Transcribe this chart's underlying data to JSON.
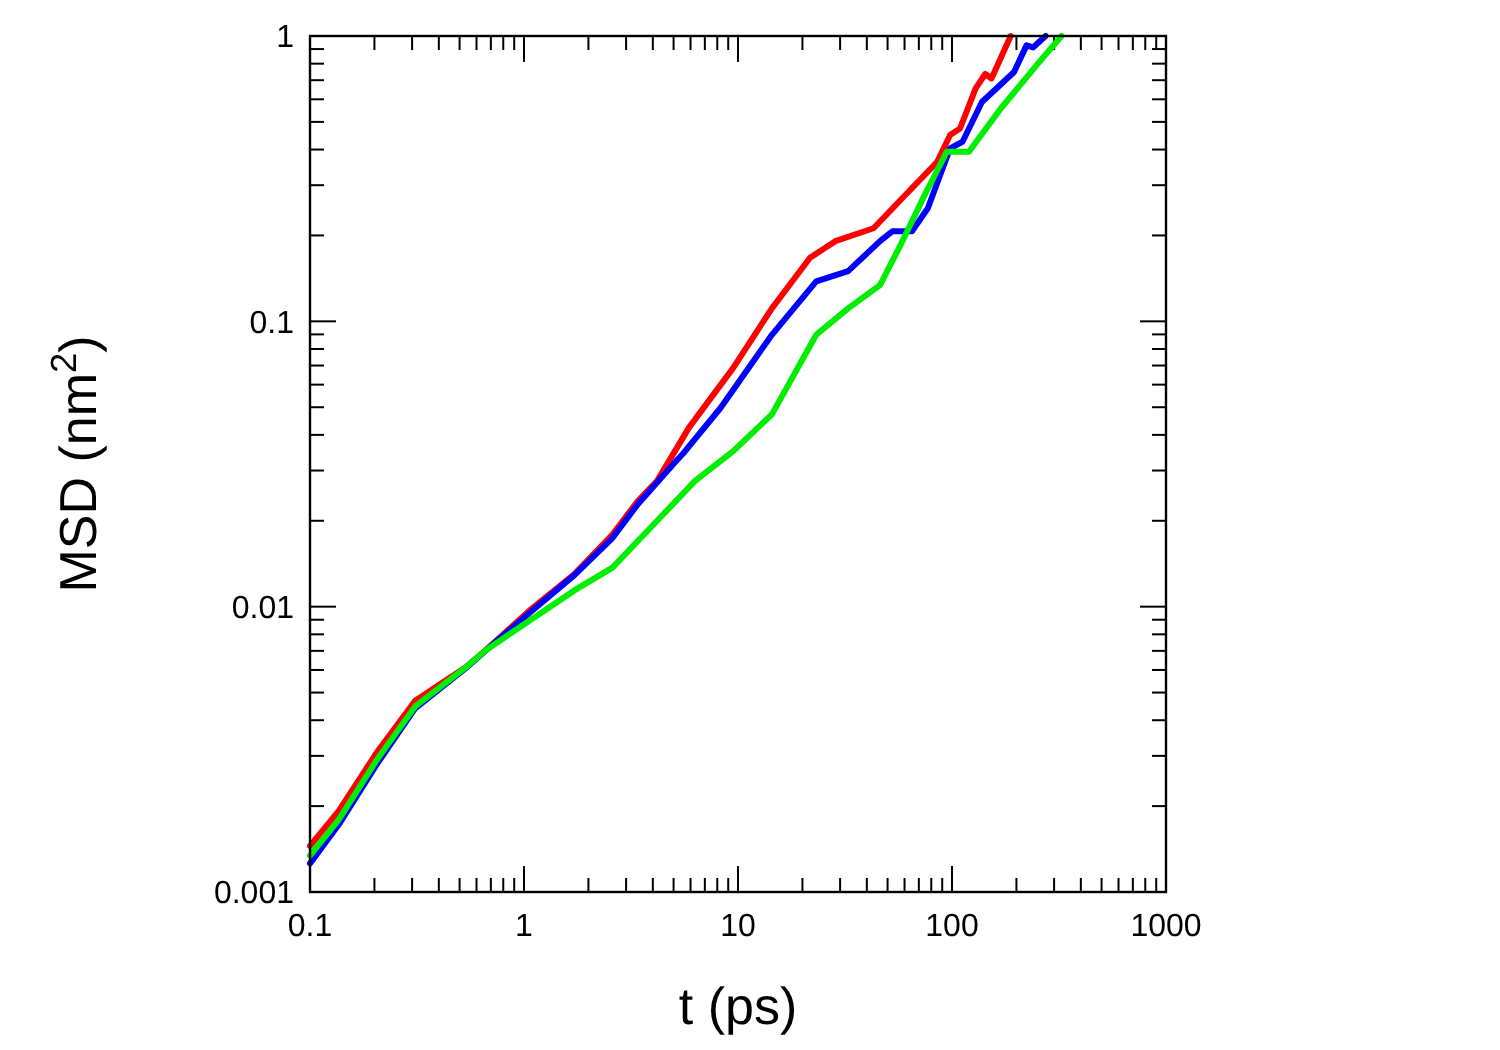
{
  "chart_data": {
    "type": "line",
    "xlabel": "t (ps)",
    "ylabel": "MSD (nm$^{2}$)",
    "log": "xy",
    "xlim": [
      0.1,
      1000
    ],
    "ylim": [
      0.001,
      1
    ],
    "xticks": [
      0.1,
      {
        "value": 0.2,
        "label": null
      },
      {
        "value": 0.3,
        "label": null
      },
      {
        "value": 0.4,
        "label": null
      },
      {
        "value": 0.5,
        "label": null
      },
      {
        "value": 0.6,
        "label": null
      },
      {
        "value": 0.7,
        "label": null
      },
      {
        "value": 0.8,
        "label": null
      },
      {
        "value": 0.9,
        "label": null
      },
      1,
      {
        "value": 2,
        "label": null
      },
      {
        "value": 3,
        "label": null
      },
      {
        "value": 4,
        "label": null
      },
      {
        "value": 5,
        "label": null
      },
      {
        "value": 6,
        "label": null
      },
      {
        "value": 7,
        "label": null
      },
      {
        "value": 8,
        "label": null
      },
      {
        "value": 9,
        "label": null
      },
      10,
      {
        "value": 20,
        "label": null
      },
      {
        "value": 30,
        "label": null
      },
      {
        "value": 40,
        "label": null
      },
      {
        "value": 50,
        "label": null
      },
      {
        "value": 60,
        "label": null
      },
      {
        "value": 70,
        "label": null
      },
      {
        "value": 80,
        "label": null
      },
      {
        "value": 90,
        "label": null
      },
      100,
      {
        "value": 200,
        "label": null
      },
      {
        "value": 300,
        "label": null
      },
      {
        "value": 400,
        "label": null
      },
      {
        "value": 500,
        "label": null
      },
      {
        "value": 600,
        "label": null
      },
      {
        "value": 700,
        "label": null
      },
      {
        "value": 800,
        "label": null
      },
      {
        "value": 900,
        "label": null
      },
      1000
    ],
    "yticks": [
      0.001,
      {
        "value": 0.002,
        "label": null
      },
      {
        "value": 0.003,
        "label": null
      },
      {
        "value": 0.004,
        "label": null
      },
      {
        "value": 0.005,
        "label": null
      },
      {
        "value": 0.006,
        "label": null
      },
      {
        "value": 0.007,
        "label": null
      },
      {
        "value": 0.008,
        "label": null
      },
      {
        "value": 0.009,
        "label": null
      },
      0.01,
      {
        "value": 0.02,
        "label": null
      },
      {
        "value": 0.03,
        "label": null
      },
      {
        "value": 0.04,
        "label": null
      },
      {
        "value": 0.05,
        "label": null
      },
      {
        "value": 0.06,
        "label": null
      },
      {
        "value": 0.07,
        "label": null
      },
      {
        "value": 0.08,
        "label": null
      },
      {
        "value": 0.09,
        "label": null
      },
      0.1,
      {
        "value": 0.2,
        "label": null
      },
      {
        "value": 0.3,
        "label": null
      },
      {
        "value": 0.4,
        "label": null
      },
      {
        "value": 0.5,
        "label": null
      },
      {
        "value": 0.6,
        "label": null
      },
      {
        "value": 0.7,
        "label": null
      },
      {
        "value": 0.8,
        "label": null
      },
      {
        "value": 0.9,
        "label": null
      },
      1
    ],
    "grid": false,
    "marker": "none",
    "line_style": "solid",
    "series": [
      {
        "color": "#ff0000",
        "x": [
          0.1,
          0.136,
          0.205,
          0.31,
          0.536,
          0.66,
          1.06,
          1.72,
          2.59,
          3.41,
          4.19,
          5.9,
          9.5,
          14.4,
          21.7,
          28.5,
          43,
          56.6,
          85.3,
          98,
          109,
          129,
          143,
          153,
          188
        ],
        "values": [
          0.00145,
          0.00192,
          0.00308,
          0.00468,
          0.00614,
          0.00702,
          0.00968,
          0.013,
          0.0179,
          0.0235,
          0.0276,
          0.0424,
          0.0687,
          0.111,
          0.167,
          0.191,
          0.212,
          0.263,
          0.362,
          0.45,
          0.474,
          0.655,
          0.736,
          0.71,
          1
        ]
      },
      {
        "color": "#0000ff",
        "x": [
          0.1,
          0.136,
          0.205,
          0.31,
          0.536,
          0.66,
          1.06,
          1.72,
          2.59,
          3.41,
          5.14,
          5.5,
          8.3,
          14.4,
          23.2,
          32.7,
          46.1,
          52.8,
          65,
          77.1,
          98,
          112,
          138,
          195,
          223,
          239,
          274
        ],
        "values": [
          0.00126,
          0.00172,
          0.0028,
          0.0044,
          0.0061,
          0.007,
          0.0095,
          0.0129,
          0.0174,
          0.0229,
          0.0324,
          0.0342,
          0.0498,
          0.0897,
          0.138,
          0.15,
          0.191,
          0.207,
          0.207,
          0.249,
          0.404,
          0.426,
          0.587,
          0.748,
          0.927,
          0.912,
          1
        ]
      },
      {
        "color": "#00ee00",
        "x": [
          0.1,
          0.136,
          0.205,
          0.31,
          0.536,
          0.66,
          1.06,
          1.72,
          2.59,
          4.19,
          6.3,
          9.5,
          14.4,
          23.2,
          32.7,
          46.1,
          56.6,
          74.5,
          94.6,
          120,
          169,
          256,
          325
        ],
        "values": [
          0.00134,
          0.00179,
          0.0029,
          0.00447,
          0.00614,
          0.00702,
          0.00893,
          0.0114,
          0.0137,
          0.02,
          0.0276,
          0.0351,
          0.0472,
          0.0897,
          0.111,
          0.134,
          0.181,
          0.277,
          0.393,
          0.393,
          0.557,
          0.811,
          1
        ]
      }
    ]
  }
}
